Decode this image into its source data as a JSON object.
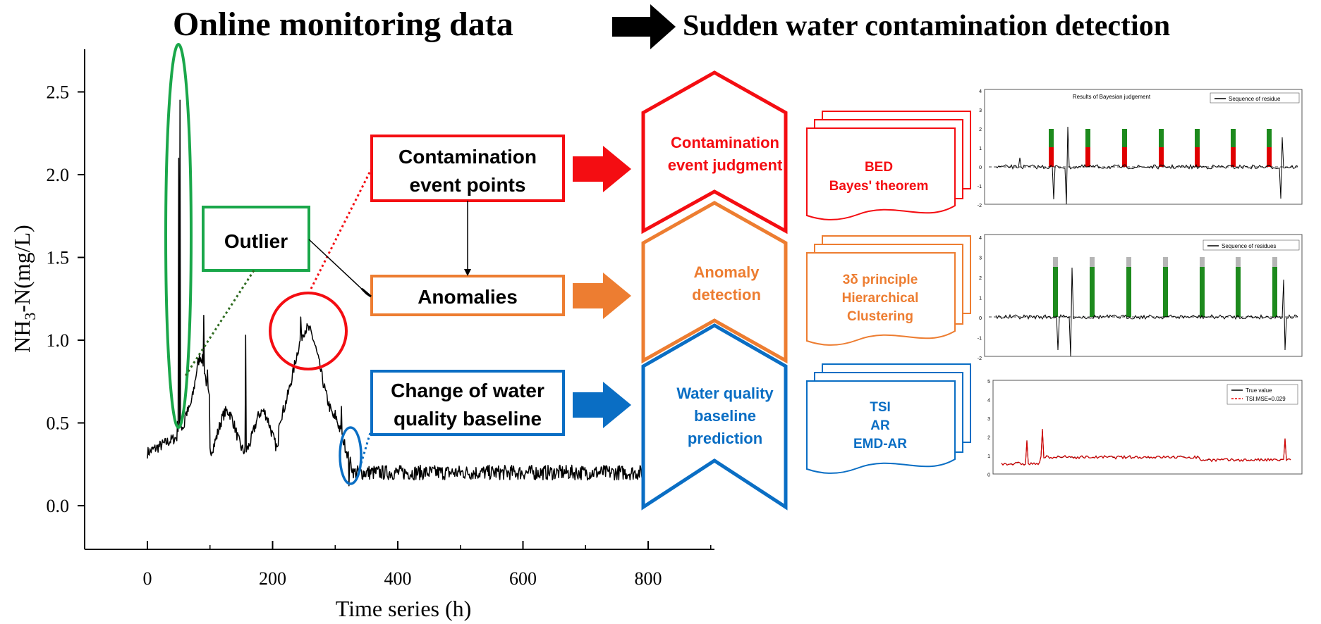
{
  "header": {
    "left": "Online monitoring data",
    "right": "Sudden water contamination detection"
  },
  "main_chart": {
    "ylabel_main": "NH",
    "ylabel_sub": "3",
    "ylabel_rest": "-N(mg/L)",
    "xlabel": "Time series (h)",
    "x_ticks": [
      "0",
      "200",
      "400",
      "600",
      "800"
    ],
    "y_ticks": [
      "0.0",
      "0.5",
      "1.0",
      "1.5",
      "2.0",
      "2.5"
    ]
  },
  "labels": {
    "outlier": "Outlier",
    "contamination_points_1": "Contamination",
    "contamination_points_2": "event points",
    "anomalies": "Anomalies",
    "baseline_change_1": "Change of water",
    "baseline_change_2": "quality baseline"
  },
  "stages": {
    "judgment_1": "Contamination",
    "judgment_2": "event judgment",
    "anomaly_1": "Anomaly",
    "anomaly_2": "detection",
    "baseline_1": "Water quality",
    "baseline_2": "baseline",
    "baseline_3": "prediction"
  },
  "methods": {
    "red_1": "BED",
    "red_2": "Bayes' theorem",
    "orange_1": "3δ principle",
    "orange_2": "Hierarchical",
    "orange_3": "Clustering",
    "blue_1": "TSI",
    "blue_2": "AR",
    "blue_3": "EMD-AR"
  },
  "thumb1": {
    "title": "Results of Bayesian judgement",
    "legend": "Sequence of residue",
    "y_ticks": [
      "4",
      "3",
      "2",
      "1",
      "0",
      "-1",
      "-2"
    ]
  },
  "thumb2": {
    "legend": "Sequence of residues",
    "y_ticks": [
      "4",
      "3",
      "2",
      "1",
      "0",
      "-1",
      "-2"
    ]
  },
  "thumb3": {
    "legend_true": "True value",
    "legend_tsi": "TSI:MSE=0.029",
    "y_ticks": [
      "5",
      "4",
      "3",
      "2",
      "1",
      "0"
    ]
  },
  "colors": {
    "red": "#f40d12",
    "orange": "#ed7d31",
    "blue": "#0a6ec4",
    "green": "#1aa74a",
    "dark_green": "#2e6b1f",
    "black": "#000000"
  }
}
